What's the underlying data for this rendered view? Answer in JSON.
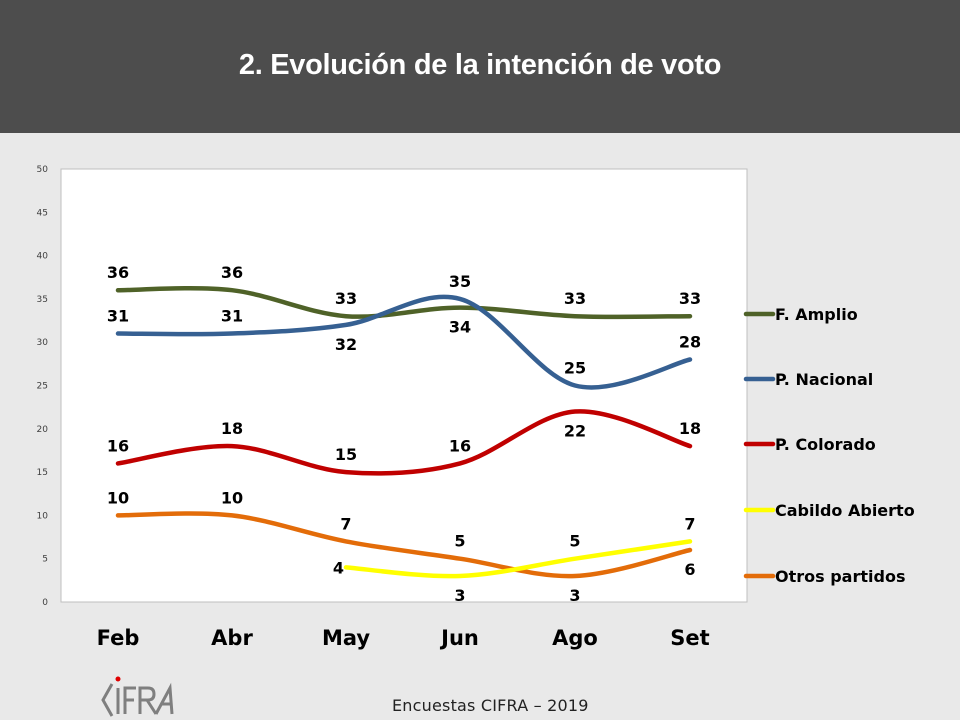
{
  "header": {
    "title": "2. Evolución de la intención de voto"
  },
  "footer": {
    "text": "Encuestas CIFRA – 2019",
    "logo_text": "CIFRA"
  },
  "chart_data": {
    "type": "line",
    "title": "2. Evolución de la intención de voto",
    "xlabel": "",
    "ylabel": "",
    "categories": [
      "Feb",
      "Abr",
      "May",
      "Jun",
      "Ago",
      "Set"
    ],
    "ylim": [
      0,
      50
    ],
    "yticks": [
      0,
      5,
      10,
      15,
      20,
      25,
      30,
      35,
      40,
      45,
      50
    ],
    "grid": false,
    "smooth": true,
    "legend_position": "right",
    "series": [
      {
        "name": "F. Amplio",
        "color": "#4f6228",
        "values": [
          36,
          36,
          33,
          34,
          33,
          33
        ],
        "label_pos": [
          "above",
          "above",
          "above",
          "below",
          "above",
          "above"
        ]
      },
      {
        "name": "P. Nacional",
        "color": "#366092",
        "values": [
          31,
          31,
          32,
          35,
          25,
          28
        ],
        "label_pos": [
          "above",
          "above",
          "below",
          "above",
          "above",
          "above"
        ]
      },
      {
        "name": "P. Colorado",
        "color": "#c00000",
        "values": [
          16,
          18,
          15,
          16,
          22,
          18
        ],
        "label_pos": [
          "above",
          "above",
          "above",
          "above",
          "below",
          "above"
        ]
      },
      {
        "name": "Cabildo Abierto",
        "color": "#ffff00",
        "values": [
          null,
          null,
          4,
          3,
          5,
          7
        ],
        "label_pos": [
          null,
          null,
          "left",
          "below",
          "above",
          "above"
        ]
      },
      {
        "name": "Otros partidos",
        "color": "#e36c09",
        "values": [
          10,
          10,
          7,
          5,
          3,
          6
        ],
        "label_pos": [
          "above",
          "above",
          "above",
          "above",
          "below",
          "below"
        ]
      }
    ]
  }
}
